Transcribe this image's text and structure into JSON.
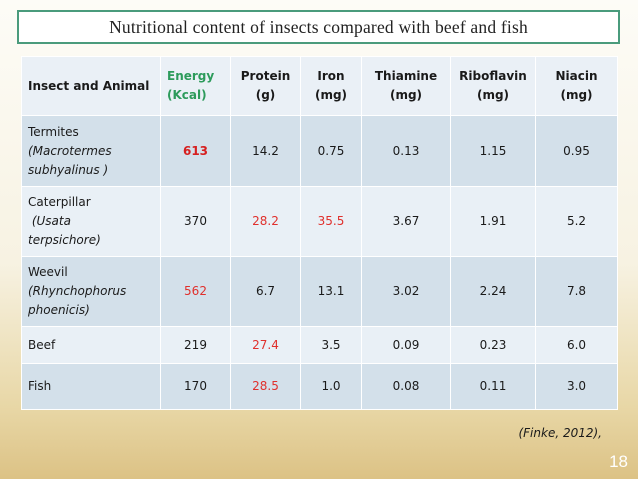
{
  "slide": {
    "title": "Nutritional content of insects compared with beef and fish",
    "source": "(Finke, 2012),",
    "number": "18"
  },
  "table": {
    "headers": [
      {
        "line1": "Insect and Animal",
        "line2": ""
      },
      {
        "line1": "Energy",
        "line2": "(Kcal)"
      },
      {
        "line1": "Protein",
        "line2": "(g)"
      },
      {
        "line1": "Iron",
        "line2": "(mg)"
      },
      {
        "line1": "Thiamine",
        "line2": "(mg)"
      },
      {
        "line1": "Riboflavin",
        "line2": "(mg)"
      },
      {
        "line1": "Niacin",
        "line2": "(mg)"
      }
    ],
    "rows": [
      {
        "name": "Termites",
        "sci1": "(Macrotermes",
        "sci2": "subhyalinus )",
        "values": [
          "613",
          "14.2",
          "0.75",
          "0.13",
          "1.15",
          "0.95"
        ]
      },
      {
        "name": "Caterpillar",
        "sci1": " (Usata",
        "sci2": "terpsichore)",
        "values": [
          "370",
          "28.2",
          "35.5",
          "3.67",
          "1.91",
          "5.2"
        ]
      },
      {
        "name": "Weevil",
        "sci1": "(Rhynchophorus",
        "sci2": "phoenicis)",
        "values": [
          "562",
          "6.7",
          "13.1",
          "3.02",
          "2.24",
          "7.8"
        ]
      },
      {
        "name": "Beef",
        "sci1": "",
        "sci2": "",
        "values": [
          "219",
          "27.4",
          "3.5",
          "0.09",
          "0.23",
          "6.0"
        ]
      },
      {
        "name": "Fish",
        "sci1": "",
        "sci2": "",
        "values": [
          "170",
          "28.5",
          "1.0",
          "0.08",
          "0.11",
          "3.0"
        ]
      }
    ]
  },
  "colors": {
    "title_border": "#4a9b7c",
    "energy_header": "#2d9b5b",
    "highlight": "#e0302c",
    "row_dark": "#d3e0ea",
    "row_light": "#e9f0f6"
  }
}
